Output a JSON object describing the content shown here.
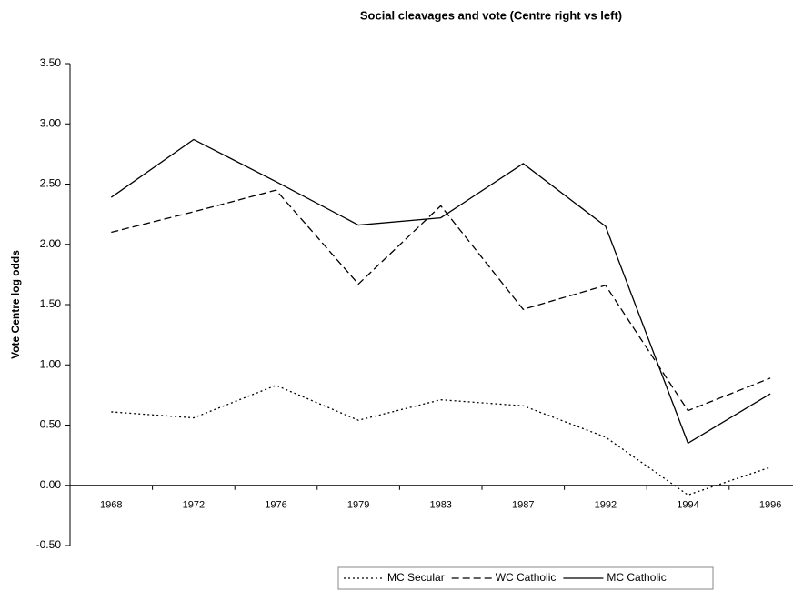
{
  "chart_data": {
    "type": "line",
    "title": "Social cleavages and vote (Centre right vs left)",
    "y_label": "Vote Centre log odds",
    "categories": [
      "1968",
      "1972",
      "1976",
      "1979",
      "1983",
      "1987",
      "1992",
      "1994",
      "1996"
    ],
    "series": [
      {
        "name": "MC Secular",
        "color": "#000000",
        "line_style": "dotted",
        "values": [
          0.61,
          0.56,
          0.83,
          0.54,
          0.71,
          0.66,
          0.4,
          -0.08,
          0.15
        ]
      },
      {
        "name": "WC Catholic",
        "color": "#000000",
        "line_style": "dashed",
        "values": [
          2.1,
          2.27,
          2.45,
          1.67,
          2.32,
          1.46,
          1.66,
          0.62,
          0.89
        ]
      },
      {
        "name": "MC Catholic",
        "color": "#000000",
        "line_style": "solid",
        "values": [
          2.39,
          2.87,
          2.52,
          2.16,
          2.22,
          2.67,
          2.15,
          0.35,
          0.76
        ]
      }
    ],
    "ylim": [
      -0.5,
      3.5
    ],
    "yticks": [
      {
        "value": -0.5,
        "label": "-0.50"
      },
      {
        "value": 0,
        "label": "0.00"
      },
      {
        "value": 0.5,
        "label": "0.50"
      },
      {
        "value": 1,
        "label": "1.00"
      },
      {
        "value": 1.5,
        "label": "1.50"
      },
      {
        "value": 2,
        "label": "2.00"
      },
      {
        "value": 2.5,
        "label": "2.50"
      },
      {
        "value": 3,
        "label": "3.00"
      },
      {
        "value": 3.5,
        "label": "3.50"
      }
    ],
    "legend": "bottom"
  }
}
